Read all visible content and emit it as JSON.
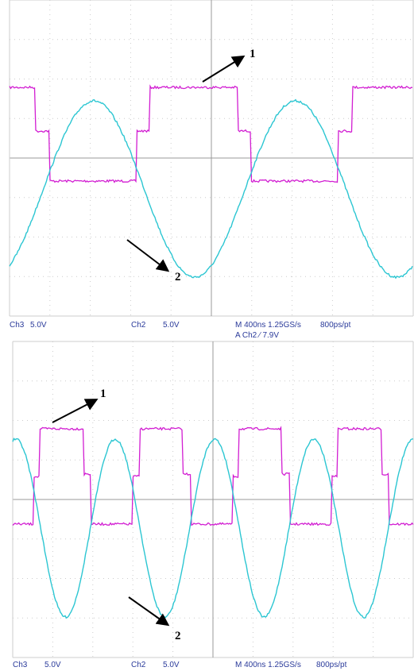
{
  "panels": [
    {
      "arrow_labels": [
        "1",
        "2"
      ],
      "ch3": "Ch3",
      "ch3_scale": "5.0V",
      "ch2": "Ch2",
      "ch2_scale": "5.0V",
      "timebase": "M 400ns 1.25GS/s",
      "sample": "800ps/pt",
      "trigger": "A Ch2 ∕ 7.9V"
    },
    {
      "arrow_labels": [
        "1",
        "2"
      ],
      "ch3": "Ch3",
      "ch3_scale": "5.0V",
      "ch2": "Ch2",
      "ch2_scale": "5.0V",
      "timebase": "M 400ns 1.25GS/s",
      "sample": "800ps/pt"
    }
  ]
}
